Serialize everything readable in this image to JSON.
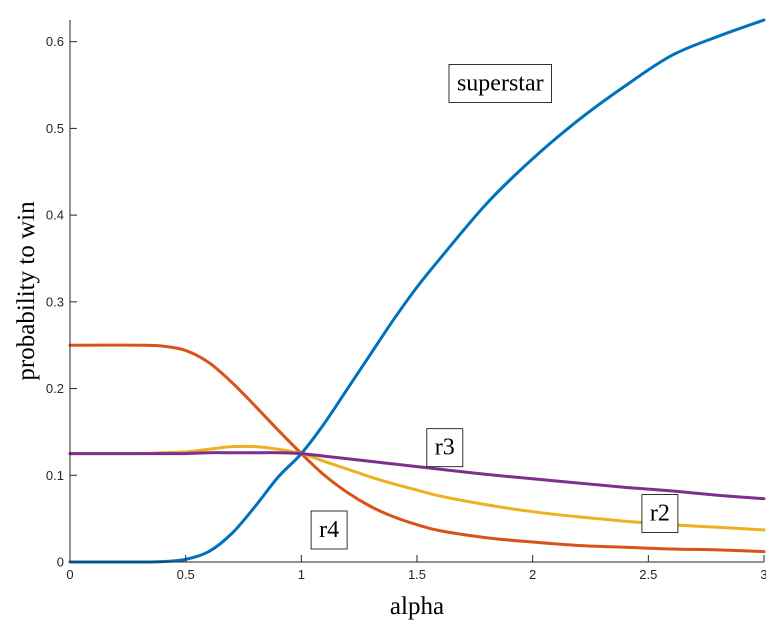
{
  "chart_data": {
    "type": "line",
    "title": "",
    "xlabel": "alpha",
    "ylabel": "probability to win",
    "xlim": [
      0,
      3
    ],
    "ylim": [
      0,
      0.625
    ],
    "xticks": [
      0,
      0.5,
      1,
      1.5,
      2,
      2.5,
      3
    ],
    "xtick_labels": [
      "0",
      "0.5",
      "1",
      "1.5",
      "2",
      "2.5",
      "3"
    ],
    "yticks": [
      0,
      0.1,
      0.2,
      0.3,
      0.4,
      0.5,
      0.6
    ],
    "ytick_labels": [
      "0",
      "0.1",
      "0.2",
      "0.3",
      "0.4",
      "0.5",
      "0.6"
    ],
    "grid": false,
    "series": [
      {
        "name": "superstar",
        "color": "#0072BD",
        "x": [
          0,
          0.3,
          0.4,
          0.5,
          0.6,
          0.7,
          0.8,
          0.9,
          1.0,
          1.1,
          1.2,
          1.3,
          1.4,
          1.5,
          1.6,
          1.8,
          2.0,
          2.2,
          2.4,
          2.6,
          2.8,
          3.0
        ],
        "y": [
          0,
          0,
          0.0005,
          0.003,
          0.012,
          0.033,
          0.064,
          0.098,
          0.125,
          0.16,
          0.2,
          0.24,
          0.28,
          0.317,
          0.35,
          0.413,
          0.465,
          0.51,
          0.549,
          0.584,
          0.606,
          0.625
        ]
      },
      {
        "name": "r4",
        "color": "#D95319",
        "x": [
          0,
          0.3,
          0.4,
          0.5,
          0.6,
          0.7,
          0.8,
          0.9,
          1.0,
          1.1,
          1.2,
          1.3,
          1.4,
          1.5,
          1.6,
          1.8,
          2.0,
          2.2,
          2.4,
          2.6,
          2.8,
          3.0
        ],
        "y": [
          0.25,
          0.25,
          0.249,
          0.244,
          0.23,
          0.207,
          0.18,
          0.152,
          0.125,
          0.1,
          0.08,
          0.064,
          0.052,
          0.043,
          0.036,
          0.028,
          0.023,
          0.019,
          0.017,
          0.015,
          0.014,
          0.012
        ]
      },
      {
        "name": "r2",
        "color": "#EDB120",
        "x": [
          0,
          0.3,
          0.4,
          0.5,
          0.6,
          0.7,
          0.8,
          0.9,
          1.0,
          1.1,
          1.2,
          1.3,
          1.4,
          1.5,
          1.6,
          1.8,
          2.0,
          2.2,
          2.4,
          2.6,
          2.8,
          3.0
        ],
        "y": [
          0.125,
          0.125,
          0.126,
          0.127,
          0.13,
          0.133,
          0.133,
          0.13,
          0.125,
          0.116,
          0.107,
          0.098,
          0.09,
          0.083,
          0.076,
          0.066,
          0.058,
          0.052,
          0.047,
          0.043,
          0.04,
          0.037
        ]
      },
      {
        "name": "r3",
        "color": "#7E2F8E",
        "x": [
          0,
          0.3,
          0.4,
          0.5,
          0.6,
          0.7,
          0.8,
          0.9,
          1.0,
          1.1,
          1.2,
          1.3,
          1.4,
          1.5,
          1.6,
          1.8,
          2.0,
          2.2,
          2.4,
          2.6,
          2.8,
          3.0
        ],
        "y": [
          0.125,
          0.125,
          0.125,
          0.125,
          0.126,
          0.126,
          0.126,
          0.126,
          0.125,
          0.122,
          0.119,
          0.116,
          0.113,
          0.11,
          0.107,
          0.101,
          0.096,
          0.091,
          0.086,
          0.082,
          0.077,
          0.073
        ]
      }
    ],
    "annotations": [
      {
        "text": "superstar",
        "x": 1.86,
        "y": 0.553,
        "series": "superstar"
      },
      {
        "text": "r3",
        "x": 1.62,
        "y": 0.133,
        "series": "r3"
      },
      {
        "text": "r2",
        "x": 2.55,
        "y": 0.057,
        "series": "r2"
      },
      {
        "text": "r4",
        "x": 1.12,
        "y": 0.038,
        "series": "r4"
      }
    ]
  }
}
